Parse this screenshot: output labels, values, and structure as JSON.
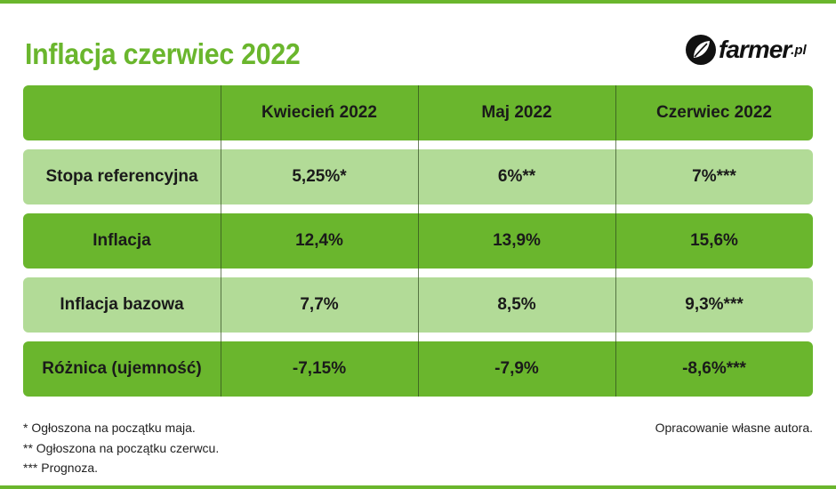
{
  "page": {
    "title": "Inflacja czerwiec 2022"
  },
  "logo": {
    "name": "farmer",
    "tld": ".pl"
  },
  "colors": {
    "accent": "#6ab62d",
    "light": "#b2db97"
  },
  "chart_data": {
    "type": "table",
    "columns": [
      "",
      "Kwiecień 2022",
      "Maj 2022",
      "Czerwiec 2022"
    ],
    "rows": [
      {
        "label": "Stopa referencyjna",
        "values": [
          "5,25%*",
          "6%**",
          "7%***"
        ]
      },
      {
        "label": "Inflacja",
        "values": [
          "12,4%",
          "13,9%",
          "15,6%"
        ]
      },
      {
        "label": "Inflacja bazowa",
        "values": [
          "7,7%",
          "8,5%",
          "9,3%***"
        ]
      },
      {
        "label": "Różnica (ujemność)",
        "values": [
          "-7,15%",
          "-7,9%",
          "-8,6%***"
        ]
      }
    ]
  },
  "footnotes": [
    "* Ogłoszona na początku maja.",
    "** Ogłoszona na początku czerwcu.",
    "*** Prognoza."
  ],
  "source": "Opracowanie własne autora."
}
